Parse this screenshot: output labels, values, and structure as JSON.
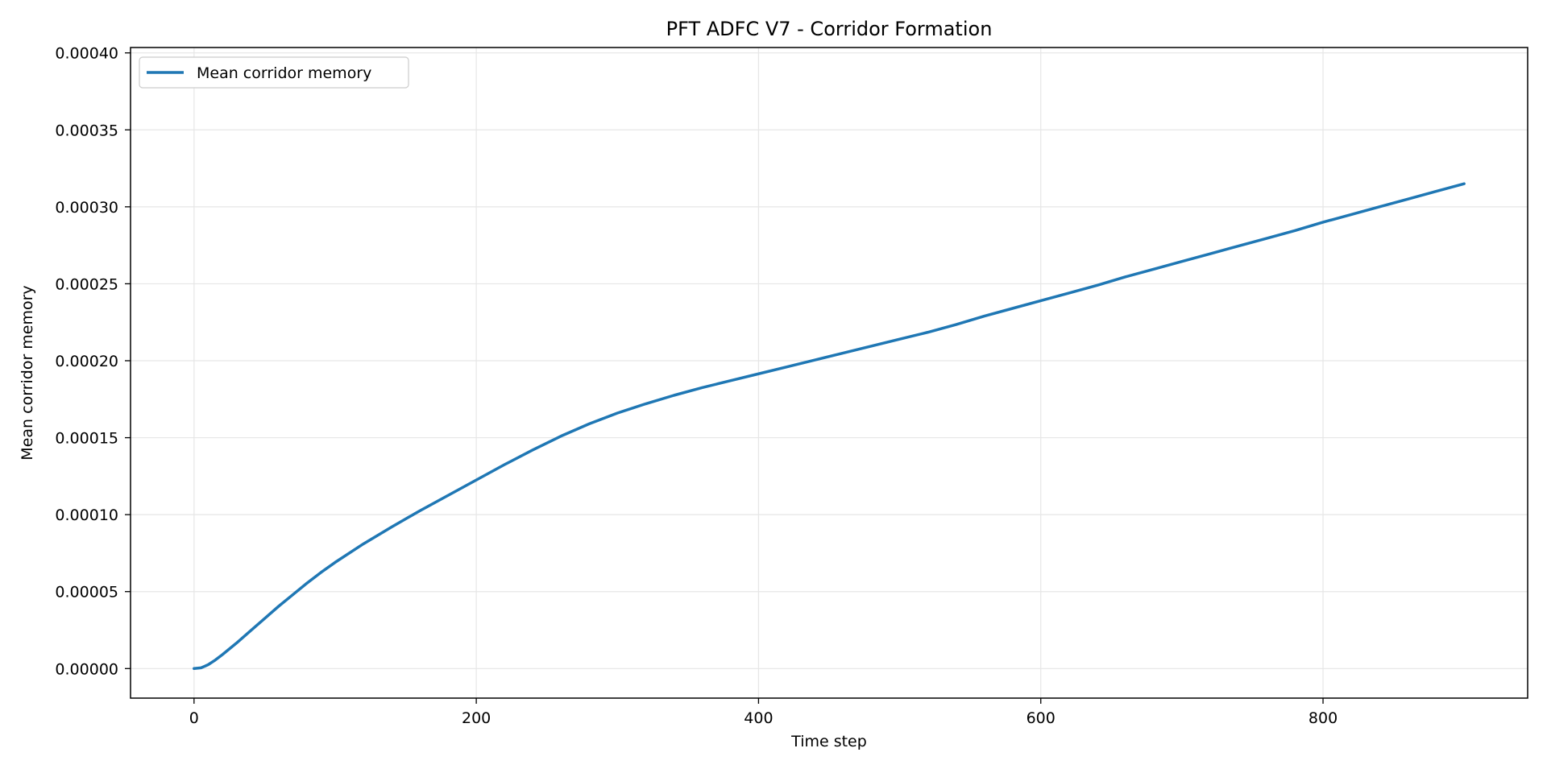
{
  "chart_data": {
    "type": "line",
    "title": "PFT ADFC V7 - Corridor Formation",
    "xlabel": "Time step",
    "ylabel": "Mean corridor memory",
    "xlim": [
      -45,
      945
    ],
    "ylim": [
      -1.92e-05,
      0.0004035
    ],
    "xticks": [
      0,
      200,
      400,
      600,
      800
    ],
    "xtick_labels": [
      "0",
      "200",
      "400",
      "600",
      "800"
    ],
    "yticks": [
      0,
      5e-05,
      0.0001,
      0.00015,
      0.0002,
      0.00025,
      0.0003,
      0.00035,
      0.0004
    ],
    "ytick_labels": [
      "0.00000",
      "0.00005",
      "0.00010",
      "0.00015",
      "0.00020",
      "0.00025",
      "0.00030",
      "0.00035",
      "0.00040"
    ],
    "grid": true,
    "legend_position": "top-left",
    "series": [
      {
        "name": "Mean corridor memory",
        "color": "#1f77b4",
        "x": [
          0,
          5,
          10,
          15,
          20,
          30,
          40,
          50,
          60,
          70,
          80,
          90,
          100,
          120,
          140,
          160,
          180,
          200,
          220,
          240,
          260,
          280,
          300,
          320,
          340,
          360,
          380,
          400,
          420,
          440,
          460,
          480,
          500,
          520,
          540,
          560,
          580,
          600,
          620,
          640,
          660,
          680,
          700,
          720,
          740,
          760,
          780,
          800,
          820,
          840,
          860,
          880,
          900
        ],
        "y": [
          0,
          5e-07,
          2.5e-06,
          5.5e-06,
          9e-06,
          1.65e-05,
          2.45e-05,
          3.25e-05,
          4.05e-05,
          4.8e-05,
          5.55e-05,
          6.25e-05,
          6.9e-05,
          8.1e-05,
          9.2e-05,
          0.0001025,
          0.0001125,
          0.0001225,
          0.0001325,
          0.000142,
          0.000151,
          0.000159,
          0.000166,
          0.000172,
          0.0001775,
          0.0001825,
          0.000187,
          0.0001915,
          0.000196,
          0.0002005,
          0.000205,
          0.0002095,
          0.000214,
          0.0002185,
          0.0002235,
          0.000229,
          0.000234,
          0.000239,
          0.000244,
          0.000249,
          0.0002545,
          0.0002595,
          0.0002645,
          0.0002695,
          0.0002745,
          0.0002795,
          0.0002845,
          0.00029,
          0.000295,
          0.0003,
          0.000305,
          0.00031,
          0.000315
        ]
      }
    ]
  }
}
